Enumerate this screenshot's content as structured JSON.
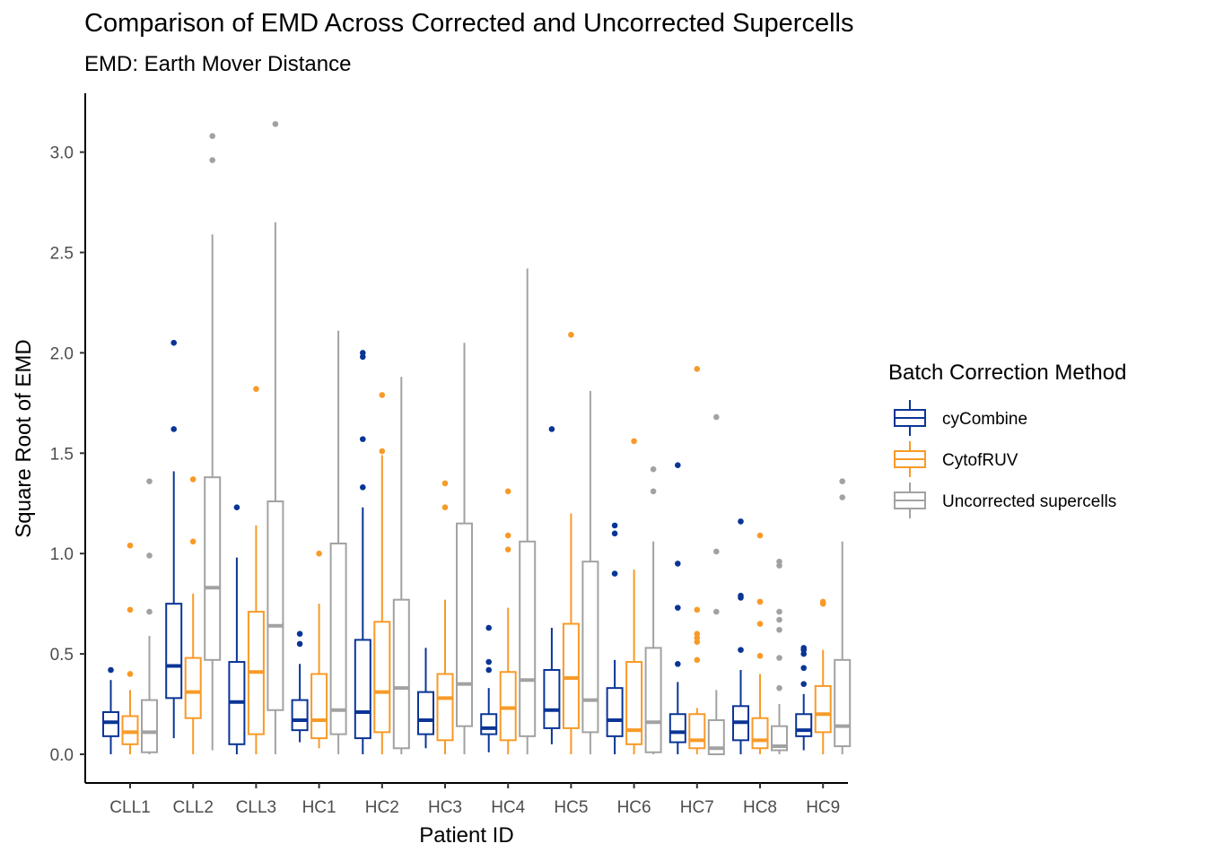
{
  "chart_data": {
    "type": "boxplot",
    "title": "Comparison of EMD Across Corrected and Uncorrected Supercells",
    "subtitle": "EMD: Earth Mover Distance",
    "xlabel": "Patient ID",
    "ylabel": "Square Root of EMD",
    "ylim": [
      -0.15,
      3.3
    ],
    "yticks": [
      "0.0",
      "0.5",
      "1.0",
      "1.5",
      "2.0",
      "2.5",
      "3.0"
    ],
    "grid": false,
    "legend": {
      "title": "Batch Correction Method",
      "position": "right"
    },
    "categories": [
      "CLL1",
      "CLL2",
      "CLL3",
      "HC1",
      "HC2",
      "HC3",
      "HC4",
      "HC5",
      "HC6",
      "HC7",
      "HC8",
      "HC9"
    ],
    "series": [
      {
        "name": "cyCombine",
        "color": "#0a3595",
        "boxes": [
          {
            "whisker_low": 0.0,
            "q1": 0.09,
            "median": 0.16,
            "q3": 0.21,
            "whisker_high": 0.37,
            "outliers": [
              0.42
            ]
          },
          {
            "whisker_low": 0.08,
            "q1": 0.28,
            "median": 0.44,
            "q3": 0.75,
            "whisker_high": 1.41,
            "outliers": [
              1.62,
              2.05
            ]
          },
          {
            "whisker_low": 0.0,
            "q1": 0.05,
            "median": 0.26,
            "q3": 0.46,
            "whisker_high": 0.98,
            "outliers": [
              1.23
            ]
          },
          {
            "whisker_low": 0.06,
            "q1": 0.12,
            "median": 0.17,
            "q3": 0.27,
            "whisker_high": 0.45,
            "outliers": [
              0.55,
              0.6
            ]
          },
          {
            "whisker_low": 0.0,
            "q1": 0.08,
            "median": 0.21,
            "q3": 0.57,
            "whisker_high": 1.23,
            "outliers": [
              1.33,
              1.57,
              1.98,
              2.0
            ]
          },
          {
            "whisker_low": 0.03,
            "q1": 0.1,
            "median": 0.17,
            "q3": 0.31,
            "whisker_high": 0.53,
            "outliers": []
          },
          {
            "whisker_low": 0.01,
            "q1": 0.1,
            "median": 0.13,
            "q3": 0.2,
            "whisker_high": 0.33,
            "outliers": [
              0.42,
              0.46,
              0.63
            ]
          },
          {
            "whisker_low": 0.05,
            "q1": 0.13,
            "median": 0.22,
            "q3": 0.42,
            "whisker_high": 0.63,
            "outliers": [
              1.62
            ]
          },
          {
            "whisker_low": 0.0,
            "q1": 0.09,
            "median": 0.17,
            "q3": 0.33,
            "whisker_high": 0.47,
            "outliers": [
              0.9,
              1.1,
              1.14
            ]
          },
          {
            "whisker_low": 0.0,
            "q1": 0.06,
            "median": 0.11,
            "q3": 0.2,
            "whisker_high": 0.36,
            "outliers": [
              0.45,
              0.73,
              0.95,
              1.44
            ]
          },
          {
            "whisker_low": 0.0,
            "q1": 0.07,
            "median": 0.16,
            "q3": 0.24,
            "whisker_high": 0.42,
            "outliers": [
              0.52,
              0.78,
              0.79,
              1.16
            ]
          },
          {
            "whisker_low": 0.02,
            "q1": 0.09,
            "median": 0.12,
            "q3": 0.2,
            "whisker_high": 0.3,
            "outliers": [
              0.35,
              0.43,
              0.5,
              0.52,
              0.53
            ]
          }
        ]
      },
      {
        "name": "CytofRUV",
        "color": "#f89a27",
        "boxes": [
          {
            "whisker_low": 0.0,
            "q1": 0.05,
            "median": 0.11,
            "q3": 0.19,
            "whisker_high": 0.32,
            "outliers": [
              0.4,
              0.72,
              1.04
            ]
          },
          {
            "whisker_low": 0.0,
            "q1": 0.18,
            "median": 0.31,
            "q3": 0.48,
            "whisker_high": 0.8,
            "outliers": [
              1.06,
              1.37
            ]
          },
          {
            "whisker_low": 0.0,
            "q1": 0.1,
            "median": 0.41,
            "q3": 0.71,
            "whisker_high": 1.14,
            "outliers": [
              1.82
            ]
          },
          {
            "whisker_low": 0.03,
            "q1": 0.08,
            "median": 0.17,
            "q3": 0.4,
            "whisker_high": 0.75,
            "outliers": [
              1.0
            ]
          },
          {
            "whisker_low": 0.0,
            "q1": 0.11,
            "median": 0.31,
            "q3": 0.66,
            "whisker_high": 1.49,
            "outliers": [
              1.51,
              1.79
            ]
          },
          {
            "whisker_low": 0.0,
            "q1": 0.07,
            "median": 0.28,
            "q3": 0.4,
            "whisker_high": 0.77,
            "outliers": [
              1.23,
              1.35
            ]
          },
          {
            "whisker_low": 0.0,
            "q1": 0.07,
            "median": 0.23,
            "q3": 0.41,
            "whisker_high": 0.73,
            "outliers": [
              1.02,
              1.09,
              1.31
            ]
          },
          {
            "whisker_low": 0.0,
            "q1": 0.13,
            "median": 0.38,
            "q3": 0.65,
            "whisker_high": 1.2,
            "outliers": [
              2.09
            ]
          },
          {
            "whisker_low": 0.0,
            "q1": 0.05,
            "median": 0.12,
            "q3": 0.46,
            "whisker_high": 0.92,
            "outliers": [
              1.56
            ]
          },
          {
            "whisker_low": 0.0,
            "q1": 0.03,
            "median": 0.07,
            "q3": 0.2,
            "whisker_high": 0.23,
            "outliers": [
              0.47,
              0.56,
              0.58,
              0.6,
              0.72,
              1.92
            ]
          },
          {
            "whisker_low": 0.0,
            "q1": 0.03,
            "median": 0.07,
            "q3": 0.18,
            "whisker_high": 0.4,
            "outliers": [
              0.49,
              0.65,
              0.76,
              0.76,
              1.09
            ]
          },
          {
            "whisker_low": 0.0,
            "q1": 0.11,
            "median": 0.2,
            "q3": 0.34,
            "whisker_high": 0.52,
            "outliers": [
              0.75,
              0.76
            ]
          }
        ]
      },
      {
        "name": "Uncorrected supercells",
        "color": "#a2a2a2",
        "boxes": [
          {
            "whisker_low": 0.0,
            "q1": 0.01,
            "median": 0.11,
            "q3": 0.27,
            "whisker_high": 0.59,
            "outliers": [
              0.71,
              0.99,
              1.36
            ]
          },
          {
            "whisker_low": 0.02,
            "q1": 0.47,
            "median": 0.83,
            "q3": 1.38,
            "whisker_high": 2.59,
            "outliers": [
              2.96,
              3.08
            ]
          },
          {
            "whisker_low": 0.0,
            "q1": 0.22,
            "median": 0.64,
            "q3": 1.26,
            "whisker_high": 2.65,
            "outliers": [
              3.14
            ]
          },
          {
            "whisker_low": 0.0,
            "q1": 0.1,
            "median": 0.22,
            "q3": 1.05,
            "whisker_high": 2.11,
            "outliers": []
          },
          {
            "whisker_low": 0.0,
            "q1": 0.03,
            "median": 0.33,
            "q3": 0.77,
            "whisker_high": 1.88,
            "outliers": []
          },
          {
            "whisker_low": 0.0,
            "q1": 0.14,
            "median": 0.35,
            "q3": 1.15,
            "whisker_high": 2.05,
            "outliers": []
          },
          {
            "whisker_low": 0.0,
            "q1": 0.09,
            "median": 0.37,
            "q3": 1.06,
            "whisker_high": 2.42,
            "outliers": []
          },
          {
            "whisker_low": 0.0,
            "q1": 0.11,
            "median": 0.27,
            "q3": 0.96,
            "whisker_high": 1.81,
            "outliers": []
          },
          {
            "whisker_low": 0.0,
            "q1": 0.01,
            "median": 0.16,
            "q3": 0.53,
            "whisker_high": 1.06,
            "outliers": [
              1.31,
              1.42
            ]
          },
          {
            "whisker_low": 0.0,
            "q1": 0.0,
            "median": 0.03,
            "q3": 0.17,
            "whisker_high": 0.32,
            "outliers": [
              0.71,
              1.01,
              1.68
            ]
          },
          {
            "whisker_low": 0.0,
            "q1": 0.02,
            "median": 0.04,
            "q3": 0.14,
            "whisker_high": 0.25,
            "outliers": [
              0.33,
              0.48,
              0.62,
              0.67,
              0.71,
              0.94,
              0.96
            ]
          },
          {
            "whisker_low": 0.0,
            "q1": 0.04,
            "median": 0.14,
            "q3": 0.47,
            "whisker_high": 1.06,
            "outliers": [
              1.28,
              1.36
            ]
          }
        ]
      }
    ]
  }
}
